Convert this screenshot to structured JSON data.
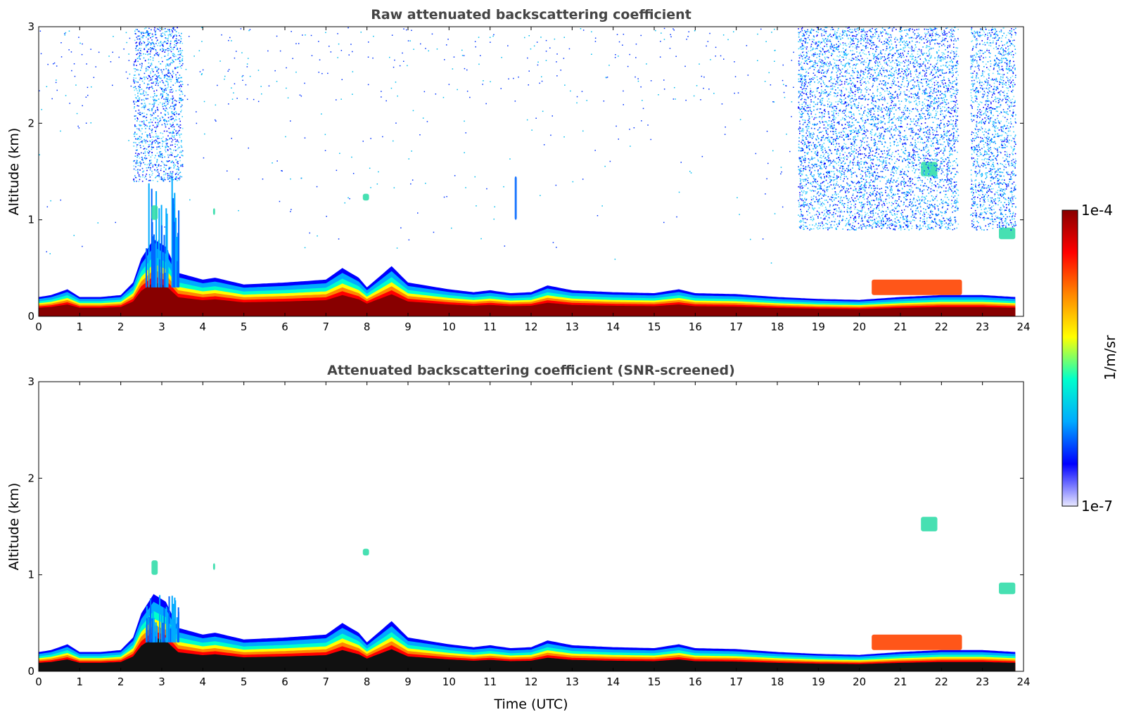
{
  "chart_data": [
    {
      "type": "heatmap",
      "title": "Raw attenuated backscattering coefficient",
      "xlabel": "",
      "ylabel": "Altitude (km)",
      "xlim": [
        0,
        24
      ],
      "ylim": [
        0,
        3
      ],
      "xticks": [
        "0",
        "1",
        "2",
        "3",
        "4",
        "5",
        "6",
        "7",
        "8",
        "9",
        "10",
        "11",
        "12",
        "13",
        "14",
        "15",
        "16",
        "17",
        "18",
        "19",
        "20",
        "21",
        "22",
        "23",
        "24"
      ],
      "yticks": [
        "0",
        "1",
        "2",
        "3"
      ],
      "screened": false,
      "layer_top_km": [
        [
          0,
          0.2
        ],
        [
          0.3,
          0.22
        ],
        [
          0.7,
          0.28
        ],
        [
          1,
          0.2
        ],
        [
          1.5,
          0.2
        ],
        [
          2,
          0.22
        ],
        [
          2.3,
          0.35
        ],
        [
          2.5,
          0.6
        ],
        [
          2.8,
          0.8
        ],
        [
          3.1,
          0.72
        ],
        [
          3.4,
          0.45
        ],
        [
          4,
          0.38
        ],
        [
          4.3,
          0.4
        ],
        [
          5,
          0.33
        ],
        [
          6,
          0.35
        ],
        [
          7,
          0.38
        ],
        [
          7.4,
          0.5
        ],
        [
          7.8,
          0.4
        ],
        [
          8,
          0.3
        ],
        [
          8.6,
          0.52
        ],
        [
          9,
          0.35
        ],
        [
          10,
          0.28
        ],
        [
          10.6,
          0.25
        ],
        [
          11,
          0.27
        ],
        [
          11.5,
          0.24
        ],
        [
          12,
          0.25
        ],
        [
          12.4,
          0.32
        ],
        [
          13,
          0.27
        ],
        [
          14,
          0.25
        ],
        [
          15,
          0.24
        ],
        [
          15.6,
          0.28
        ],
        [
          16,
          0.24
        ],
        [
          17,
          0.23
        ],
        [
          18,
          0.2
        ],
        [
          19,
          0.18
        ],
        [
          20,
          0.17
        ],
        [
          21,
          0.2
        ],
        [
          22,
          0.22
        ],
        [
          23,
          0.22
        ],
        [
          23.8,
          0.2
        ]
      ],
      "elevated_features": [
        {
          "t_start": 2.6,
          "t_end": 3.4,
          "alt_min_km": 0.3,
          "alt_max_km": 1.5,
          "kind": "plumes"
        },
        {
          "t_start": 2.75,
          "t_end": 2.9,
          "alt_min_km": 1.0,
          "alt_max_km": 1.15,
          "kind": "cloud"
        },
        {
          "t_start": 4.25,
          "t_end": 4.3,
          "alt_min_km": 1.05,
          "alt_max_km": 1.12,
          "kind": "cloud"
        },
        {
          "t_start": 7.9,
          "t_end": 8.05,
          "alt_min_km": 1.2,
          "alt_max_km": 1.27,
          "kind": "cloud"
        },
        {
          "t_start": 11.6,
          "t_end": 11.65,
          "alt_min_km": 1.0,
          "alt_max_km": 1.45,
          "kind": "streak"
        },
        {
          "t_start": 21.5,
          "t_end": 21.9,
          "alt_min_km": 1.45,
          "alt_max_km": 1.6,
          "kind": "cloud"
        },
        {
          "t_start": 23.4,
          "t_end": 23.8,
          "alt_min_km": 0.8,
          "alt_max_km": 0.92,
          "kind": "cloud"
        },
        {
          "t_start": 20.3,
          "t_end": 22.5,
          "alt_min_km": 0.22,
          "alt_max_km": 0.38,
          "kind": "aerosol"
        }
      ],
      "noise_regions": [
        {
          "t_start": 2.3,
          "t_end": 3.5,
          "alt_min_km": 1.4,
          "alt_max_km": 3.0
        },
        {
          "t_start": 18.5,
          "t_end": 22.4,
          "alt_min_km": 0.9,
          "alt_max_km": 3.0
        },
        {
          "t_start": 22.7,
          "t_end": 23.8,
          "alt_min_km": 0.9,
          "alt_max_km": 3.0
        }
      ]
    },
    {
      "type": "heatmap",
      "title": "Attenuated backscattering coefficient (SNR-screened)",
      "xlabel": "Time (UTC)",
      "ylabel": "Altitude (km)",
      "xlim": [
        0,
        24
      ],
      "ylim": [
        0,
        3
      ],
      "xticks": [
        "0",
        "1",
        "2",
        "3",
        "4",
        "5",
        "6",
        "7",
        "8",
        "9",
        "10",
        "11",
        "12",
        "13",
        "14",
        "15",
        "16",
        "17",
        "18",
        "19",
        "20",
        "21",
        "22",
        "23",
        "24"
      ],
      "yticks": [
        "0",
        "1",
        "2",
        "3"
      ],
      "screened": true
    }
  ],
  "colorbar": {
    "label": "1/m/sr",
    "max_label": "1e-4",
    "min_label": "1e-7",
    "scale": "log",
    "colormap": "jet",
    "colors": [
      "#e8e8ff",
      "#0000ff",
      "#00aaff",
      "#00ffcc",
      "#ffff00",
      "#ff8800",
      "#ff0000",
      "#880000"
    ]
  }
}
